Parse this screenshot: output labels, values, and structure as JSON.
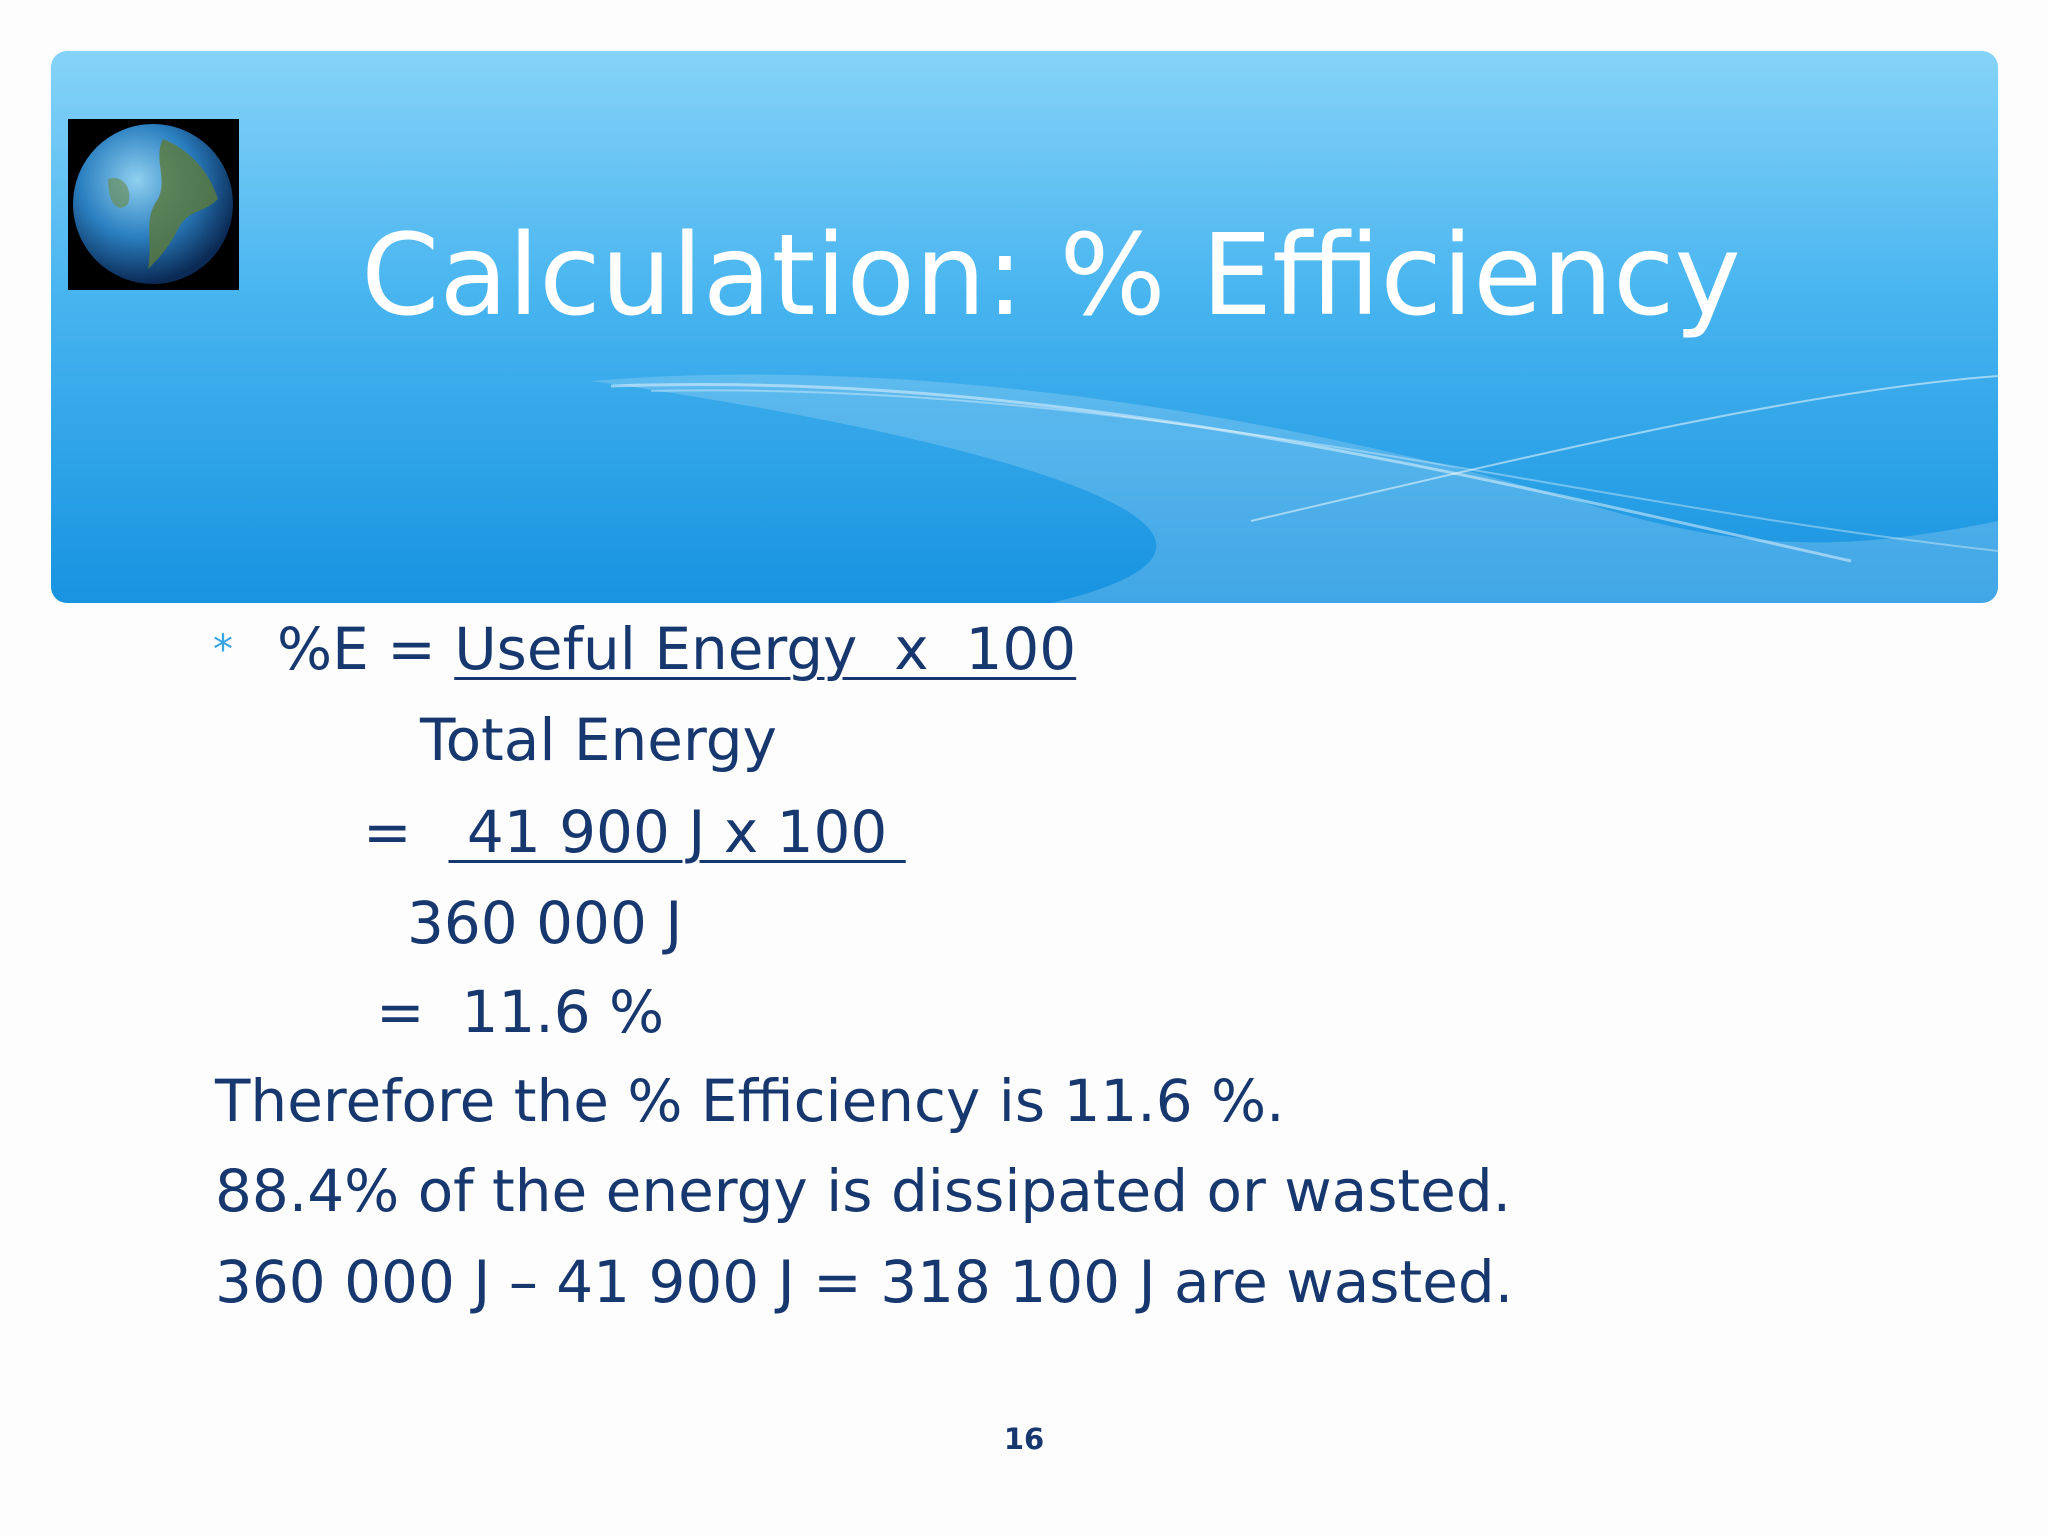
{
  "header": {
    "title": "Calculation: % Efficiency"
  },
  "body": [
    {
      "lead": "%E = ",
      "underlined": "Useful Energy  x  100"
    },
    {
      "text": "Total Energy"
    },
    {
      "lead": "=  ",
      "underlined": " 41 900 J x 100 "
    },
    {
      "text": "360 000 J"
    },
    {
      "text": "=  11.6 %"
    },
    {
      "text": "Therefore the % Efficiency is 11.6 %."
    },
    {
      "text": "88.4% of the energy is dissipated or wasted."
    },
    {
      "text": "360 000 J – 41 900 J = 318 100 J are wasted."
    }
  ],
  "page_number": "16"
}
